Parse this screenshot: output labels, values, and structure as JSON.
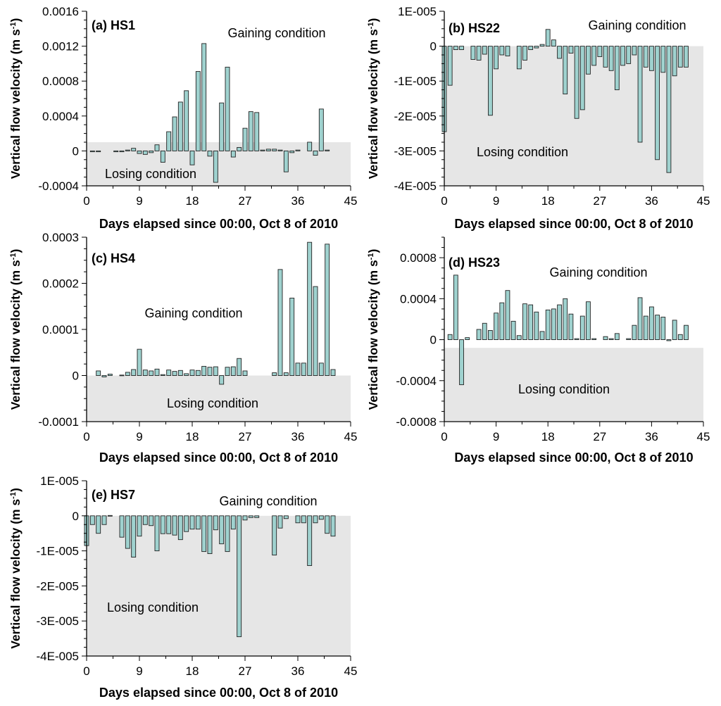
{
  "figure": {
    "ylabel_main": "Vertical flow velocity (m s",
    "ylabel_sup": "-1",
    "ylabel_close": ")"
  },
  "colors": {
    "bar_fill": "#9fd2cf",
    "bar_stroke": "#222222",
    "shade": "#e6e6e6",
    "axis": "#000000"
  },
  "chart_data": [
    {
      "type": "bar",
      "title": "(a) HS1",
      "xlabel": "Days elapsed since 00:00, Oct 8 of 2010",
      "ylabel": "Vertical flow velocity (m s-1)",
      "xlim": [
        0,
        45
      ],
      "ylim": [
        -0.0004,
        0.0016
      ],
      "xticks": [
        0,
        9,
        18,
        27,
        36,
        45
      ],
      "xtick_labels": [
        "0",
        "9",
        "18",
        "27",
        "36",
        "45"
      ],
      "yticks": [
        -0.0004,
        0,
        0.0004,
        0.0008,
        0.0012,
        0.0016
      ],
      "ytick_labels": [
        "-0.0004",
        "0",
        "0.0004",
        "0.0008",
        "0.0012",
        "0.0016"
      ],
      "threshold": 0.0001,
      "gaining_label": "Gaining condition",
      "losing_label": "Losing condition",
      "x": [
        1,
        2,
        5,
        6,
        7,
        8,
        9,
        10,
        11,
        12,
        13,
        14,
        15,
        16,
        17,
        18,
        19,
        20,
        21,
        22,
        23,
        24,
        25,
        26,
        27,
        28,
        29,
        30,
        31,
        32,
        33,
        34,
        35,
        36,
        38,
        39,
        40,
        41
      ],
      "values": [
        -1e-05,
        -1e-05,
        -1e-05,
        -1e-05,
        1e-05,
        3e-05,
        -3e-05,
        -4e-05,
        -2e-05,
        7e-05,
        -0.00013,
        0.00022,
        0.00039,
        0.00056,
        0.00069,
        -0.00016,
        0.00091,
        0.00123,
        -6e-05,
        -0.00036,
        0.00055,
        0.00096,
        -7e-05,
        4e-05,
        0.00026,
        0.00045,
        0.00044,
        1e-05,
        2e-05,
        2e-05,
        1e-05,
        -0.00024,
        -2e-05,
        1e-05,
        0.0001,
        -5e-05,
        0.00048,
        1e-05
      ]
    },
    {
      "type": "bar",
      "title": "(b) HS22",
      "xlabel": "Days elapsed since 00:00, Oct 8 of 2010",
      "ylabel": "Vertical flow velocity (m s-1)",
      "xlim": [
        0,
        45
      ],
      "ylim": [
        -4e-05,
        1e-05
      ],
      "xticks": [
        0,
        9,
        18,
        27,
        36,
        45
      ],
      "xtick_labels": [
        "0",
        "9",
        "18",
        "27",
        "36",
        "45"
      ],
      "yticks": [
        -4e-05,
        -3e-05,
        -2e-05,
        -1e-05,
        0,
        1e-05
      ],
      "ytick_labels": [
        "-4E-005",
        "-3E-005",
        "-2E-005",
        "-1E-005",
        "0",
        "1E-005"
      ],
      "threshold": 0,
      "gaining_label": "Gaining condition",
      "losing_label": "Losing condition",
      "x": [
        0,
        1,
        2,
        3,
        5,
        6,
        7,
        8,
        9,
        10,
        11,
        13,
        14,
        15,
        16,
        17,
        18,
        19,
        20,
        21,
        22,
        23,
        24,
        25,
        26,
        27,
        28,
        29,
        30,
        31,
        32,
        33,
        34,
        35,
        36,
        37,
        38,
        39,
        40,
        41,
        42
      ],
      "values": [
        -2.45e-05,
        -1.12e-05,
        -1e-06,
        -1e-06,
        -3.8e-06,
        -4e-06,
        -2.3e-06,
        -1.98e-05,
        -6.5e-06,
        -2.5e-06,
        -2.8e-06,
        -6.5e-06,
        -4e-06,
        -1e-06,
        -5e-07,
        5e-07,
        4.8e-06,
        1.8e-06,
        -3.5e-06,
        -1.37e-05,
        -2e-06,
        -2.07e-05,
        -1.82e-05,
        -8e-06,
        -5.5e-06,
        -3e-06,
        -6e-06,
        -7e-06,
        -1.25e-05,
        -5.5e-06,
        -5e-06,
        -2.5e-06,
        -2.75e-05,
        -6e-06,
        -7e-06,
        -3.25e-05,
        -7.5e-06,
        -3.62e-05,
        -8.5e-06,
        -6e-06,
        -6e-06
      ]
    },
    {
      "type": "bar",
      "title": "(c) HS4",
      "xlabel": "Days elapsed since 00:00, Oct 8 of 2010",
      "ylabel": "Vertical flow velocity (m s-1)",
      "xlim": [
        0,
        45
      ],
      "ylim": [
        -0.0001,
        0.0003
      ],
      "xticks": [
        0,
        9,
        18,
        27,
        36,
        45
      ],
      "xtick_labels": [
        "0",
        "9",
        "18",
        "27",
        "36",
        "45"
      ],
      "yticks": [
        -0.0001,
        0,
        0.0001,
        0.0002,
        0.0003
      ],
      "ytick_labels": [
        "-0.0001",
        "0",
        "0.0001",
        "0.0002",
        "0.0003"
      ],
      "threshold": 0,
      "gaining_label": "Gaining condition",
      "losing_label": "Losing condition",
      "x": [
        2,
        3,
        4,
        6,
        7,
        8,
        9,
        10,
        11,
        12,
        13,
        14,
        15,
        16,
        17,
        18,
        19,
        20,
        21,
        22,
        23,
        24,
        25,
        26,
        27,
        32,
        33,
        34,
        35,
        36,
        37,
        38,
        39,
        40,
        41,
        42
      ],
      "values": [
        1e-05,
        -3e-06,
        3e-06,
        1e-06,
        7e-06,
        1.3e-05,
        5.7e-05,
        1.2e-05,
        1e-05,
        1.4e-05,
        2e-06,
        1.2e-05,
        9e-06,
        1.1e-05,
        4e-06,
        1.2e-05,
        1.1e-05,
        2e-05,
        1.8e-05,
        1.9e-05,
        -1.9e-05,
        1.8e-05,
        1.9e-05,
        3.7e-05,
        1e-05,
        6e-06,
        0.00023,
        6e-06,
        0.000168,
        2.7e-05,
        2.7e-05,
        0.000289,
        0.000193,
        2.7e-05,
        0.000285,
        1.3e-05
      ]
    },
    {
      "type": "bar",
      "title": "(d) HS23",
      "xlabel": "Days elapsed since 00:00, Oct 8 of 2010",
      "ylabel": "Vertical flow velocity (m s-1)",
      "xlim": [
        0,
        45
      ],
      "ylim": [
        -0.0008,
        0.001
      ],
      "xticks": [
        0,
        9,
        18,
        27,
        36,
        45
      ],
      "xtick_labels": [
        "0",
        "9",
        "18",
        "27",
        "36",
        "45"
      ],
      "yticks": [
        -0.0008,
        -0.0004,
        0,
        0.0004,
        0.0008
      ],
      "ytick_labels": [
        "-0.0008",
        "-0.0004",
        "0",
        "0.0004",
        "0.0008"
      ],
      "threshold": -8e-05,
      "gaining_label": "Gaining condition",
      "losing_label": "Losing condition",
      "x": [
        1,
        2,
        3,
        4,
        6,
        7,
        8,
        9,
        10,
        11,
        12,
        13,
        14,
        15,
        16,
        17,
        18,
        19,
        20,
        21,
        22,
        23,
        24,
        25,
        26,
        28,
        29,
        30,
        32,
        33,
        34,
        35,
        36,
        37,
        38,
        39,
        40,
        41,
        42
      ],
      "values": [
        5e-05,
        0.00063,
        -0.00044,
        2e-05,
        0.0001,
        0.00016,
        9e-05,
        0.00026,
        0.00036,
        0.00048,
        0.00018,
        4e-05,
        0.00035,
        0.00034,
        0.00027,
        8e-05,
        0.00029,
        0.0003,
        0.00034,
        0.0004,
        0.00025,
        1e-05,
        0.00023,
        0.00037,
        1e-05,
        3e-05,
        1e-05,
        6e-05,
        1e-05,
        0.00014,
        0.00041,
        0.00023,
        0.00032,
        0.00024,
        0.00022,
        -1e-05,
        0.00019,
        5e-05,
        0.00014
      ]
    },
    {
      "type": "bar",
      "title": "(e) HS7",
      "xlabel": "Days elapsed since 00:00, Oct 8 of 2010",
      "ylabel": "Vertical flow velocity (m s-1)",
      "xlim": [
        0,
        45
      ],
      "ylim": [
        -4e-05,
        1e-05
      ],
      "xticks": [
        0,
        9,
        18,
        27,
        36,
        45
      ],
      "xtick_labels": [
        "0",
        "9",
        "18",
        "27",
        "36",
        "45"
      ],
      "yticks": [
        -4e-05,
        -3e-05,
        -2e-05,
        -1e-05,
        0,
        1e-05
      ],
      "ytick_labels": [
        "-4E-005",
        "-3E-005",
        "-2E-005",
        "-1E-005",
        "0",
        "1E-005"
      ],
      "threshold": 0,
      "gaining_label": "Gaining condition",
      "losing_label": "Losing condition",
      "x": [
        0,
        1,
        2,
        3,
        4,
        6,
        7,
        8,
        9,
        10,
        11,
        12,
        13,
        14,
        15,
        16,
        17,
        18,
        19,
        20,
        21,
        22,
        23,
        24,
        25,
        26,
        27,
        28,
        29,
        32,
        33,
        34,
        36,
        37,
        38,
        39,
        40,
        41,
        42
      ],
      "values": [
        -8.5e-06,
        -2.5e-06,
        -5e-06,
        -2.5e-06,
        1e-07,
        -6.1e-06,
        -9.3e-06,
        -1.18e-05,
        -5.8e-06,
        -2.5e-06,
        -2.8e-06,
        -1e-05,
        -5.1e-06,
        -5.1e-06,
        -5.5e-06,
        -6.8e-06,
        -4.5e-06,
        -3.8e-06,
        -3.8e-06,
        -1.02e-05,
        -1.08e-05,
        -4e-06,
        -8e-06,
        -1.02e-05,
        -3.8e-06,
        -3.45e-05,
        -1.2e-06,
        -5e-07,
        -5e-07,
        -1.12e-05,
        -3.5e-06,
        -8e-07,
        -2e-06,
        -2e-06,
        -1.42e-05,
        -2e-06,
        -1e-06,
        -5e-06,
        -5.8e-06
      ]
    }
  ]
}
